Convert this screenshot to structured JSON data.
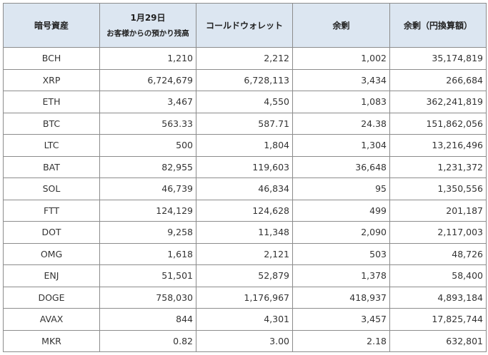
{
  "table": {
    "headers": {
      "asset": "暗号資産",
      "date": "1月29日",
      "deposit": "お客様からの預かり残高",
      "cold_wallet": "コールドウォレット",
      "surplus": "余剰",
      "surplus_jpy": "余剰（円換算額）"
    },
    "rows": [
      {
        "asset": "BCH",
        "deposit": "1,210",
        "cold_wallet": "2,212",
        "surplus": "1,002",
        "surplus_jpy": "35,174,819"
      },
      {
        "asset": "XRP",
        "deposit": "6,724,679",
        "cold_wallet": "6,728,113",
        "surplus": "3,434",
        "surplus_jpy": "266,684"
      },
      {
        "asset": "ETH",
        "deposit": "3,467",
        "cold_wallet": "4,550",
        "surplus": "1,083",
        "surplus_jpy": "362,241,819"
      },
      {
        "asset": "BTC",
        "deposit": "563.33",
        "cold_wallet": "587.71",
        "surplus": "24.38",
        "surplus_jpy": "151,862,056"
      },
      {
        "asset": "LTC",
        "deposit": "500",
        "cold_wallet": "1,804",
        "surplus": "1,304",
        "surplus_jpy": "13,216,496"
      },
      {
        "asset": "BAT",
        "deposit": "82,955",
        "cold_wallet": "119,603",
        "surplus": "36,648",
        "surplus_jpy": "1,231,372"
      },
      {
        "asset": "SOL",
        "deposit": "46,739",
        "cold_wallet": "46,834",
        "surplus": "95",
        "surplus_jpy": "1,350,556"
      },
      {
        "asset": "FTT",
        "deposit": "124,129",
        "cold_wallet": "124,628",
        "surplus": "499",
        "surplus_jpy": "201,187"
      },
      {
        "asset": "DOT",
        "deposit": "9,258",
        "cold_wallet": "11,348",
        "surplus": "2,090",
        "surplus_jpy": "2,117,003"
      },
      {
        "asset": "OMG",
        "deposit": "1,618",
        "cold_wallet": "2,121",
        "surplus": "503",
        "surplus_jpy": "48,726"
      },
      {
        "asset": "ENJ",
        "deposit": "51,501",
        "cold_wallet": "52,879",
        "surplus": "1,378",
        "surplus_jpy": "58,400"
      },
      {
        "asset": "DOGE",
        "deposit": "758,030",
        "cold_wallet": "1,176,967",
        "surplus": "418,937",
        "surplus_jpy": "4,893,184"
      },
      {
        "asset": "AVAX",
        "deposit": "844",
        "cold_wallet": "4,301",
        "surplus": "3,457",
        "surplus_jpy": "17,825,744"
      },
      {
        "asset": "MKR",
        "deposit": "0.82",
        "cold_wallet": "3.00",
        "surplus": "2.18",
        "surplus_jpy": "632,801"
      }
    ]
  },
  "colors": {
    "header_bg": "#dce6f1",
    "border": "#8c8c8c",
    "text": "#333333"
  }
}
